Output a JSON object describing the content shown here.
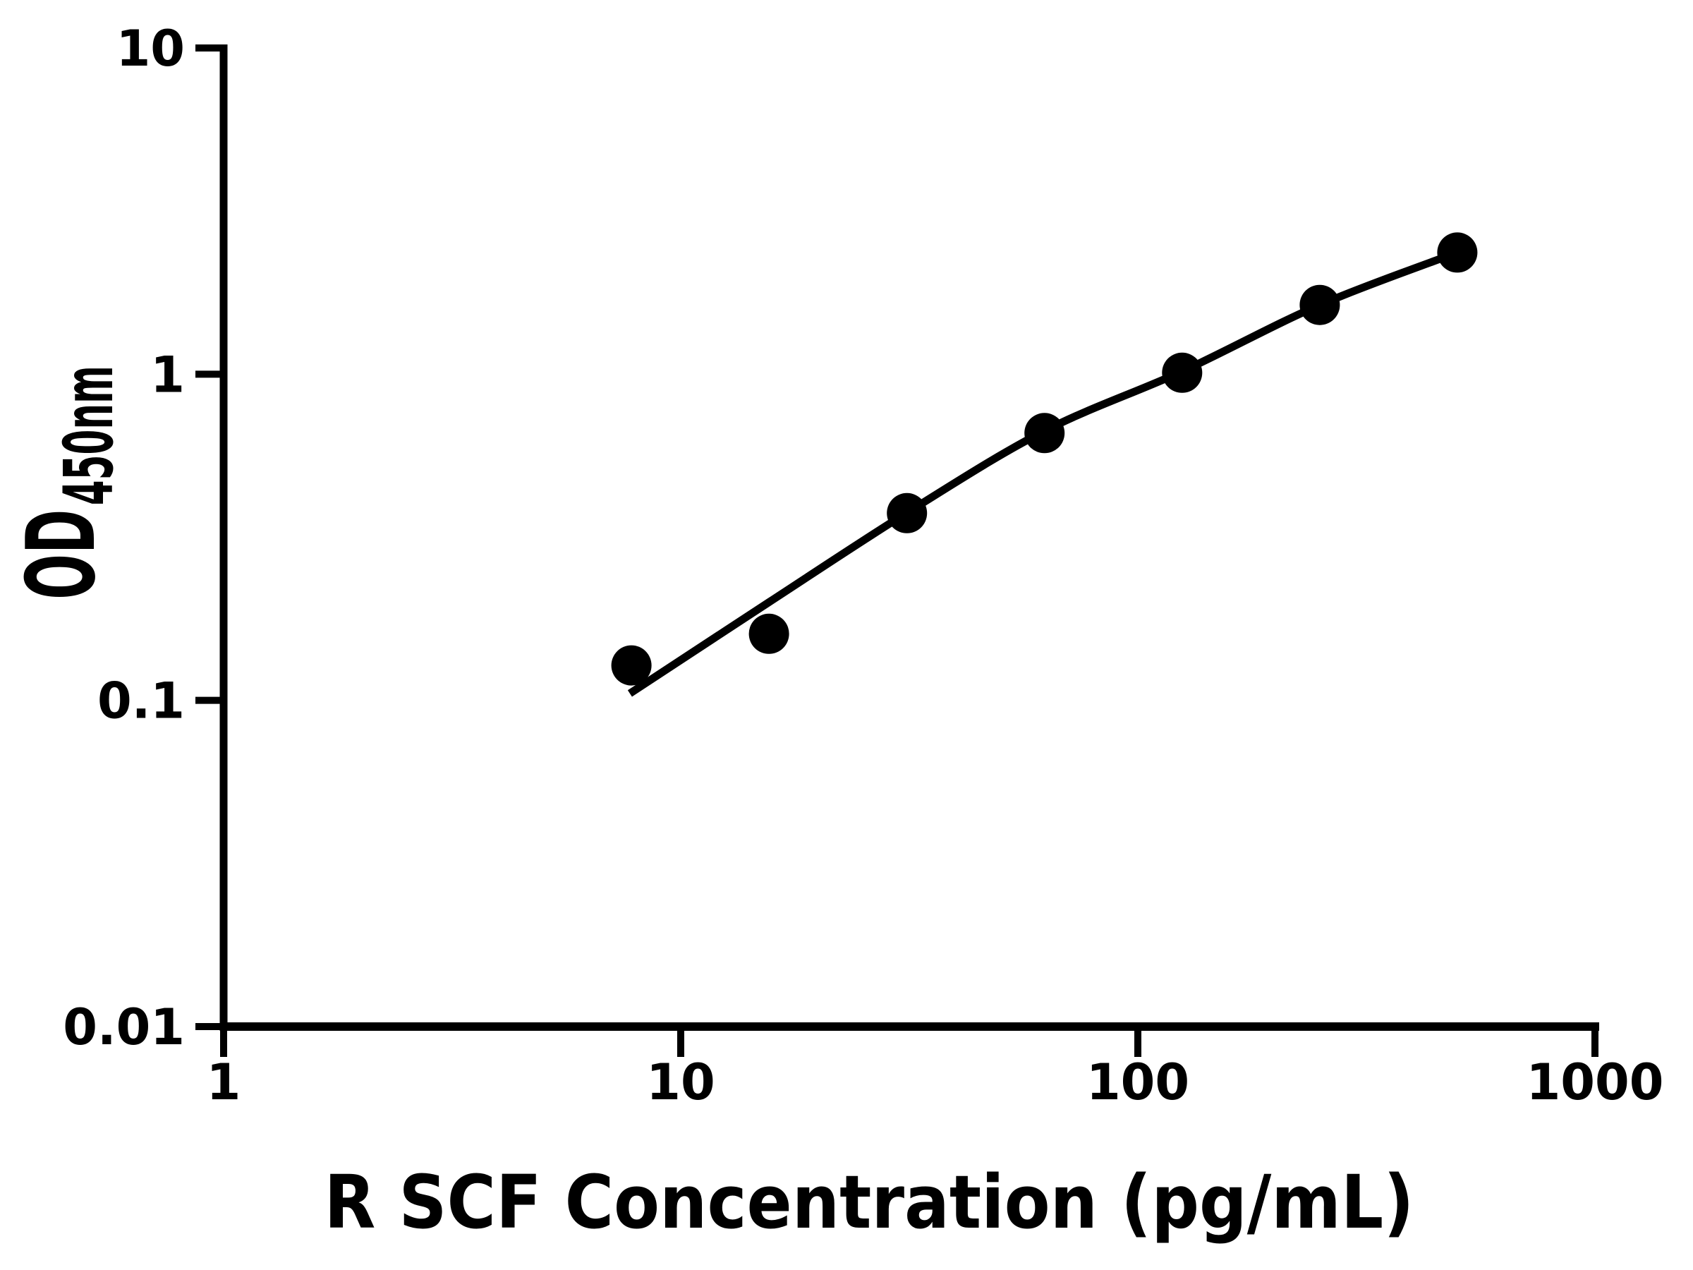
{
  "figure": {
    "background": "#ffffff",
    "foreground": "#000000",
    "marker_color": "#000000",
    "line_color": "#000000"
  },
  "chart_data": {
    "type": "scatter",
    "title": "",
    "xlabel": "R SCF Concentration (pg/mL)",
    "ylabel": "OD",
    "ylabel_subscript": "450nm",
    "x_scale": "log",
    "y_scale": "log",
    "xlim": [
      1,
      1000
    ],
    "ylim": [
      0.01,
      10
    ],
    "grid": "off",
    "legend": "none",
    "x_ticks": [
      {
        "value": 1,
        "label": "1"
      },
      {
        "value": 10,
        "label": "10"
      },
      {
        "value": 100,
        "label": "100"
      },
      {
        "value": 1000,
        "label": "1000"
      }
    ],
    "y_ticks": [
      {
        "value": 0.01,
        "label": "0.01"
      },
      {
        "value": 0.1,
        "label": "0.1"
      },
      {
        "value": 1,
        "label": "1"
      },
      {
        "value": 10,
        "label": "10"
      }
    ],
    "series": [
      {
        "name": "standard-points",
        "type": "scatter",
        "marker": "filled-circle",
        "points": [
          {
            "x": 7.8,
            "y": 0.128
          },
          {
            "x": 15.6,
            "y": 0.16
          },
          {
            "x": 31.25,
            "y": 0.375
          },
          {
            "x": 62.5,
            "y": 0.66
          },
          {
            "x": 125,
            "y": 1.01
          },
          {
            "x": 250,
            "y": 1.63
          },
          {
            "x": 500,
            "y": 2.36
          }
        ]
      },
      {
        "name": "fit-curve",
        "type": "line",
        "points": [
          {
            "x": 7.74,
            "y": 0.105
          },
          {
            "x": 15.6,
            "y": 0.2
          },
          {
            "x": 31.25,
            "y": 0.376
          },
          {
            "x": 62.5,
            "y": 0.67
          },
          {
            "x": 125,
            "y": 1.02
          },
          {
            "x": 250,
            "y": 1.63
          },
          {
            "x": 500,
            "y": 2.36
          }
        ]
      }
    ]
  }
}
